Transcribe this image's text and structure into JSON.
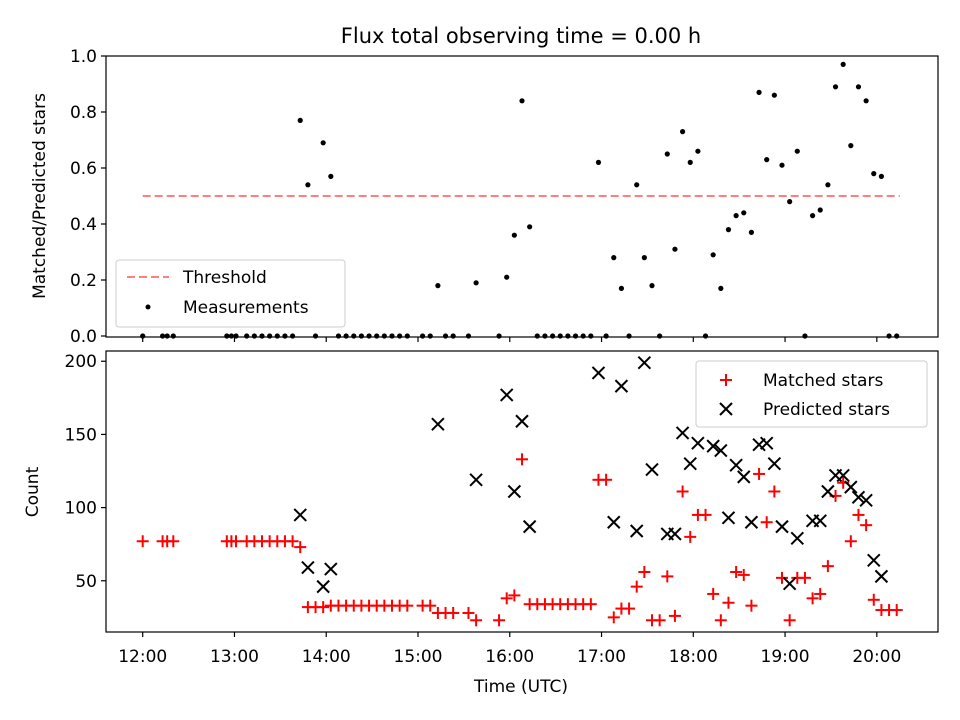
{
  "figure": {
    "title": "Flux total observing time = 0.00 h",
    "xlabel": "Time (UTC)"
  },
  "chart_data": [
    {
      "type": "scatter",
      "panel": "top",
      "ylabel": "Matched/Predicted stars",
      "xlim": [
        "11:36",
        "20:40"
      ],
      "ylim": [
        0,
        1.0
      ],
      "yticks": [
        0.0,
        0.2,
        0.4,
        0.6,
        0.8,
        1.0
      ],
      "ytick_labels": [
        "0.0",
        "0.2",
        "0.4",
        "0.6",
        "0.8",
        "1.0"
      ],
      "legend_position": "lower-left",
      "threshold": {
        "name": "Threshold",
        "value": 0.5,
        "x_start": "12:00",
        "x_end": "20:15",
        "color": "#ff7f7f"
      },
      "series": [
        {
          "name": "Measurements",
          "color": "#000000",
          "points": [
            [
              "12:00",
              0
            ],
            [
              "12:13",
              0
            ],
            [
              "12:16",
              0
            ],
            [
              "12:20",
              0
            ],
            [
              "12:55",
              0
            ],
            [
              "12:58",
              0
            ],
            [
              "13:01",
              0
            ],
            [
              "13:08",
              0
            ],
            [
              "13:13",
              0
            ],
            [
              "13:18",
              0
            ],
            [
              "13:23",
              0
            ],
            [
              "13:28",
              0
            ],
            [
              "13:33",
              0
            ],
            [
              "13:38",
              0
            ],
            [
              "13:43",
              0.77
            ],
            [
              "13:48",
              0.54
            ],
            [
              "13:53",
              0
            ],
            [
              "13:58",
              0.69
            ],
            [
              "14:03",
              0.57
            ],
            [
              "14:08",
              0
            ],
            [
              "14:13",
              0
            ],
            [
              "14:18",
              0
            ],
            [
              "14:23",
              0
            ],
            [
              "14:28",
              0
            ],
            [
              "14:33",
              0
            ],
            [
              "14:38",
              0
            ],
            [
              "14:43",
              0
            ],
            [
              "14:48",
              0
            ],
            [
              "14:53",
              0
            ],
            [
              "15:03",
              0
            ],
            [
              "15:08",
              0
            ],
            [
              "15:13",
              0.18
            ],
            [
              "15:18",
              0
            ],
            [
              "15:23",
              0
            ],
            [
              "15:33",
              0
            ],
            [
              "15:38",
              0.19
            ],
            [
              "15:53",
              0
            ],
            [
              "15:58",
              0.21
            ],
            [
              "16:03",
              0.36
            ],
            [
              "16:08",
              0.84
            ],
            [
              "16:13",
              0.39
            ],
            [
              "16:18",
              0
            ],
            [
              "16:23",
              0
            ],
            [
              "16:28",
              0
            ],
            [
              "16:33",
              0
            ],
            [
              "16:38",
              0
            ],
            [
              "16:43",
              0
            ],
            [
              "16:48",
              0
            ],
            [
              "16:53",
              0
            ],
            [
              "16:58",
              0.62
            ],
            [
              "17:03",
              0
            ],
            [
              "17:08",
              0.28
            ],
            [
              "17:13",
              0.17
            ],
            [
              "17:18",
              0
            ],
            [
              "17:23",
              0.54
            ],
            [
              "17:28",
              0.28
            ],
            [
              "17:33",
              0.18
            ],
            [
              "17:38",
              0
            ],
            [
              "17:43",
              0.65
            ],
            [
              "17:48",
              0.31
            ],
            [
              "17:53",
              0.73
            ],
            [
              "17:58",
              0.62
            ],
            [
              "18:03",
              0.66
            ],
            [
              "18:08",
              0
            ],
            [
              "18:13",
              0.29
            ],
            [
              "18:18",
              0.17
            ],
            [
              "18:23",
              0.38
            ],
            [
              "18:28",
              0.43
            ],
            [
              "18:33",
              0.44
            ],
            [
              "18:38",
              0.37
            ],
            [
              "18:43",
              0.87
            ],
            [
              "18:48",
              0.63
            ],
            [
              "18:53",
              0.86
            ],
            [
              "18:58",
              0.61
            ],
            [
              "19:03",
              0.48
            ],
            [
              "19:08",
              0.66
            ],
            [
              "19:13",
              0
            ],
            [
              "19:18",
              0.43
            ],
            [
              "19:23",
              0.45
            ],
            [
              "19:28",
              0.54
            ],
            [
              "19:33",
              0.89
            ],
            [
              "19:38",
              0.97
            ],
            [
              "19:43",
              0.68
            ],
            [
              "19:48",
              0.89
            ],
            [
              "19:53",
              0.84
            ],
            [
              "19:58",
              0.58
            ],
            [
              "20:03",
              0.57
            ],
            [
              "20:08",
              0
            ],
            [
              "20:13",
              0
            ]
          ]
        }
      ]
    },
    {
      "type": "scatter",
      "panel": "bottom",
      "ylabel": "Count",
      "xlim": [
        "11:36",
        "20:40"
      ],
      "ylim": [
        15,
        207
      ],
      "yticks": [
        50,
        100,
        150,
        200
      ],
      "ytick_labels": [
        "50",
        "100",
        "150",
        "200"
      ],
      "xticks": [
        "12:00",
        "13:00",
        "14:00",
        "15:00",
        "16:00",
        "17:00",
        "18:00",
        "19:00",
        "20:00"
      ],
      "xtick_labels": [
        "12:00",
        "13:00",
        "14:00",
        "15:00",
        "16:00",
        "17:00",
        "18:00",
        "19:00",
        "20:00"
      ],
      "legend_position": "top-right",
      "series": [
        {
          "name": "Matched stars",
          "marker": "plus",
          "color": "#ff0000",
          "points": [
            [
              "12:00",
              77
            ],
            [
              "12:13",
              77
            ],
            [
              "12:16",
              77
            ],
            [
              "12:20",
              77
            ],
            [
              "12:55",
              77
            ],
            [
              "12:58",
              77
            ],
            [
              "13:01",
              77
            ],
            [
              "13:08",
              77
            ],
            [
              "13:13",
              77
            ],
            [
              "13:18",
              77
            ],
            [
              "13:23",
              77
            ],
            [
              "13:28",
              77
            ],
            [
              "13:33",
              77
            ],
            [
              "13:38",
              77
            ],
            [
              "13:43",
              73
            ],
            [
              "13:48",
              32
            ],
            [
              "13:53",
              32
            ],
            [
              "13:58",
              32
            ],
            [
              "14:03",
              33
            ],
            [
              "14:08",
              33
            ],
            [
              "14:13",
              33
            ],
            [
              "14:18",
              33
            ],
            [
              "14:23",
              33
            ],
            [
              "14:28",
              33
            ],
            [
              "14:33",
              33
            ],
            [
              "14:38",
              33
            ],
            [
              "14:43",
              33
            ],
            [
              "14:48",
              33
            ],
            [
              "14:53",
              33
            ],
            [
              "15:03",
              33
            ],
            [
              "15:08",
              33
            ],
            [
              "15:13",
              28
            ],
            [
              "15:18",
              28
            ],
            [
              "15:23",
              28
            ],
            [
              "15:33",
              28
            ],
            [
              "15:38",
              23
            ],
            [
              "15:53",
              23
            ],
            [
              "15:58",
              38
            ],
            [
              "16:03",
              40
            ],
            [
              "16:08",
              133
            ],
            [
              "16:13",
              34
            ],
            [
              "16:18",
              34
            ],
            [
              "16:23",
              34
            ],
            [
              "16:28",
              34
            ],
            [
              "16:33",
              34
            ],
            [
              "16:38",
              34
            ],
            [
              "16:43",
              34
            ],
            [
              "16:48",
              34
            ],
            [
              "16:53",
              34
            ],
            [
              "16:58",
              119
            ],
            [
              "17:03",
              119
            ],
            [
              "17:08",
              25
            ],
            [
              "17:13",
              31
            ],
            [
              "17:18",
              31
            ],
            [
              "17:23",
              46
            ],
            [
              "17:28",
              56
            ],
            [
              "17:33",
              23
            ],
            [
              "17:38",
              23
            ],
            [
              "17:43",
              53
            ],
            [
              "17:48",
              26
            ],
            [
              "17:53",
              111
            ],
            [
              "17:58",
              80
            ],
            [
              "18:03",
              95
            ],
            [
              "18:08",
              95
            ],
            [
              "18:13",
              41
            ],
            [
              "18:18",
              23
            ],
            [
              "18:23",
              35
            ],
            [
              "18:28",
              56
            ],
            [
              "18:33",
              54
            ],
            [
              "18:38",
              33
            ],
            [
              "18:43",
              123
            ],
            [
              "18:48",
              90
            ],
            [
              "18:53",
              111
            ],
            [
              "18:58",
              52
            ],
            [
              "19:03",
              23
            ],
            [
              "19:08",
              52
            ],
            [
              "19:13",
              52
            ],
            [
              "19:18",
              38
            ],
            [
              "19:23",
              41
            ],
            [
              "19:28",
              60
            ],
            [
              "19:33",
              108
            ],
            [
              "19:38",
              117
            ],
            [
              "19:43",
              77
            ],
            [
              "19:48",
              95
            ],
            [
              "19:53",
              88
            ],
            [
              "19:58",
              37
            ],
            [
              "20:03",
              30
            ],
            [
              "20:08",
              30
            ],
            [
              "20:13",
              30
            ]
          ]
        },
        {
          "name": "Predicted stars",
          "marker": "x",
          "color": "#000000",
          "points": [
            [
              "13:43",
              95
            ],
            [
              "13:48",
              59
            ],
            [
              "13:58",
              46
            ],
            [
              "14:03",
              58
            ],
            [
              "15:13",
              157
            ],
            [
              "15:38",
              119
            ],
            [
              "15:58",
              177
            ],
            [
              "16:03",
              111
            ],
            [
              "16:08",
              159
            ],
            [
              "16:13",
              87
            ],
            [
              "16:58",
              192
            ],
            [
              "17:08",
              90
            ],
            [
              "17:13",
              183
            ],
            [
              "17:23",
              84
            ],
            [
              "17:28",
              199
            ],
            [
              "17:33",
              126
            ],
            [
              "17:43",
              82
            ],
            [
              "17:48",
              82
            ],
            [
              "17:53",
              151
            ],
            [
              "17:58",
              130
            ],
            [
              "18:03",
              144
            ],
            [
              "18:13",
              142
            ],
            [
              "18:18",
              139
            ],
            [
              "18:23",
              93
            ],
            [
              "18:28",
              129
            ],
            [
              "18:33",
              121
            ],
            [
              "18:38",
              90
            ],
            [
              "18:43",
              143
            ],
            [
              "18:48",
              144
            ],
            [
              "18:53",
              130
            ],
            [
              "18:58",
              87
            ],
            [
              "19:03",
              48
            ],
            [
              "19:08",
              79
            ],
            [
              "19:18",
              91
            ],
            [
              "19:23",
              91
            ],
            [
              "19:28",
              111
            ],
            [
              "19:33",
              122
            ],
            [
              "19:38",
              122
            ],
            [
              "19:43",
              114
            ],
            [
              "19:48",
              107
            ],
            [
              "19:53",
              105
            ],
            [
              "19:58",
              64
            ],
            [
              "20:03",
              53
            ]
          ]
        }
      ]
    }
  ]
}
